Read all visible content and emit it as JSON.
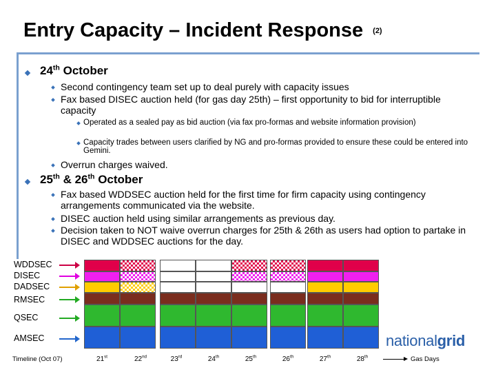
{
  "title": {
    "main": "Entry Capacity – Incident Response",
    "suffix": "(2)"
  },
  "sections": [
    {
      "heading_pre": "24",
      "heading_sup": "th",
      "heading_post": " October",
      "items": [
        {
          "text": "Second contingency team set up to deal purely with capacity issues"
        },
        {
          "text": " Fax based DISEC auction held (for gas day 25th) – first opportunity to bid for interruptible capacity",
          "subitems": [
            " Operated as a sealed pay as bid auction (via fax pro-formas and website information provision)",
            " Capacity trades between users clarified by NG and pro-formas provided to ensure these could be entered into Gemini."
          ]
        },
        {
          "text": "Overrun charges waived."
        }
      ]
    },
    {
      "heading_pre": "25",
      "heading_sup": "th",
      "heading_mid": " & 26",
      "heading_sup2": "th",
      "heading_post": " October",
      "items": [
        {
          "text": "Fax based WDDSEC auction held for the first time for firm capacity using contingency arrangements communicated via the website."
        },
        {
          "text": " DISEC auction held using similar arrangements as previous day."
        },
        {
          "text": " Decision taken to NOT waive overrun charges for 25th & 26th as users had option to partake in DISEC and WDDSEC auctions for the day."
        }
      ]
    }
  ],
  "legend": [
    {
      "label": "WDDSEC",
      "color": "#2f3b9a"
    },
    {
      "label": "DISEC",
      "color": "#2f3b9a"
    },
    {
      "label": "DADSEC",
      "color": "#d0a400"
    },
    {
      "label": "RMSEC",
      "color": "#2f3b9a"
    },
    {
      "label": "QSEC",
      "color": "#2f3b9a"
    },
    {
      "label": "AMSEC",
      "color": "#2f3b9a"
    }
  ],
  "arrow_colors": [
    "#cc0044",
    "#e000e0",
    "#e0a000",
    "#22aa22",
    "#22aa22",
    "#2266cc"
  ],
  "timeline": {
    "label": "Timeline (Oct 07)",
    "days": [
      {
        "num": "21",
        "sup": "st"
      },
      {
        "num": "22",
        "sup": "nd"
      },
      {
        "num": "23",
        "sup": "rd"
      },
      {
        "num": "24",
        "sup": "th"
      },
      {
        "num": "25",
        "sup": "th"
      },
      {
        "num": "26",
        "sup": "th"
      },
      {
        "num": "27",
        "sup": "th"
      },
      {
        "num": "28",
        "sup": "th"
      }
    ],
    "end_label": "Gas Days"
  },
  "chart_data": {
    "type": "table",
    "rows": [
      "WDDSEC",
      "DISEC",
      "DADSEC",
      "RMSEC",
      "QSEC",
      "AMSEC"
    ],
    "columns": [
      "21st",
      "22nd",
      "23rd",
      "24th",
      "25th",
      "26th",
      "27th",
      "28th"
    ],
    "status_legend": {
      "normal": "solid fill",
      "contingency": "checkered fill",
      "none": "white"
    },
    "cells": [
      [
        "normal",
        "contingency",
        "none",
        "none",
        "contingency",
        "contingency",
        "normal",
        "normal"
      ],
      [
        "normal",
        "contingency",
        "none",
        "none",
        "contingency",
        "contingency",
        "normal",
        "normal"
      ],
      [
        "normal",
        "contingency",
        "none",
        "none",
        "none",
        "none",
        "normal",
        "normal"
      ],
      [
        "normal",
        "normal",
        "normal",
        "normal",
        "normal",
        "normal",
        "normal",
        "normal"
      ],
      [
        "normal",
        "normal",
        "normal",
        "normal",
        "normal",
        "normal",
        "normal",
        "normal"
      ],
      [
        "normal",
        "normal",
        "normal",
        "normal",
        "normal",
        "normal",
        "normal",
        "normal"
      ]
    ],
    "row_colors": [
      "#e0004a",
      "#f020f0",
      "#ffcc00",
      "#7a2d1e",
      "#2fb82f",
      "#1f5fd6"
    ]
  },
  "logo": {
    "prefix": "national",
    "suffix": "grid"
  }
}
